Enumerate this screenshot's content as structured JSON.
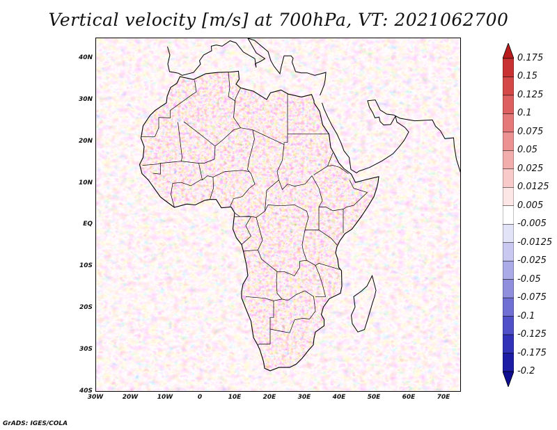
{
  "title": "Vertical velocity [m/s] at 700hPa, VT: 2021062700",
  "map": {
    "region": "Africa",
    "projection": "lat-lon",
    "lat_range": [
      -40,
      45
    ],
    "lon_range": [
      -30,
      75
    ],
    "field": "vertical velocity",
    "level": "700hPa",
    "valid_time": "2021062700"
  },
  "axes": {
    "lat_ticks": [
      {
        "value": 40,
        "label": "40N"
      },
      {
        "value": 30,
        "label": "30N"
      },
      {
        "value": 20,
        "label": "20N"
      },
      {
        "value": 10,
        "label": "10N"
      },
      {
        "value": 0,
        "label": "EQ"
      },
      {
        "value": -10,
        "label": "10S"
      },
      {
        "value": -20,
        "label": "20S"
      },
      {
        "value": -30,
        "label": "30S"
      },
      {
        "value": -40,
        "label": "40S"
      }
    ],
    "lon_ticks": [
      {
        "value": -30,
        "label": "30W"
      },
      {
        "value": -20,
        "label": "20W"
      },
      {
        "value": -10,
        "label": "10W"
      },
      {
        "value": 0,
        "label": "0"
      },
      {
        "value": 10,
        "label": "10E"
      },
      {
        "value": 20,
        "label": "20E"
      },
      {
        "value": 30,
        "label": "30E"
      },
      {
        "value": 40,
        "label": "40E"
      },
      {
        "value": 50,
        "label": "50E"
      },
      {
        "value": 60,
        "label": "60E"
      },
      {
        "value": 70,
        "label": "70E"
      }
    ]
  },
  "colorbar": {
    "labels": [
      "0.175",
      "0.15",
      "0.125",
      "0.1",
      "0.075",
      "0.05",
      "0.025",
      "0.0125",
      "0.005",
      "-0.005",
      "-0.0125",
      "-0.025",
      "-0.05",
      "-0.075",
      "-0.1",
      "-0.125",
      "-0.175",
      "-0.2"
    ],
    "colors": [
      "#b81c1c",
      "#c83232",
      "#d44848",
      "#de5f5f",
      "#e57878",
      "#ec9292",
      "#f2adad",
      "#f8caca",
      "#fce6e6",
      "#ffffff",
      "#e3e3f8",
      "#c8c8f0",
      "#ababe8",
      "#8f8fde",
      "#7070d4",
      "#5050c8",
      "#3232b8",
      "#1c1ca4",
      "#0e0e90"
    ],
    "top_color": "#b81c1c",
    "bottom_color": "#0e0e90"
  },
  "credit": "GrADS: IGES/COLA"
}
